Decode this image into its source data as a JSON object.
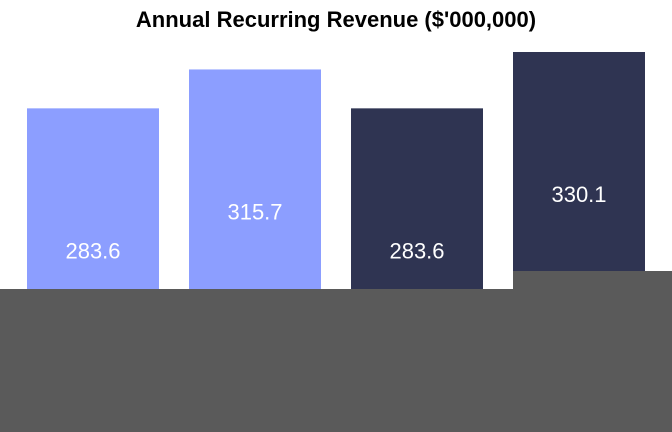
{
  "chart_data": {
    "type": "bar",
    "title": "Annual Recurring Revenue ($'000,000)",
    "categories": [
      "",
      "",
      "",
      ""
    ],
    "values": [
      283.6,
      315.7,
      283.6,
      330.1
    ],
    "data_labels": [
      "283.6",
      "315.7",
      "283.6",
      "330.1"
    ],
    "colors": [
      "#8c9eff",
      "#8c9eff",
      "#2f3452",
      "#2f3452"
    ],
    "label_color": "#ffffff",
    "xlabel": "",
    "ylabel": "",
    "grid": false,
    "legend": "none"
  },
  "colors": {
    "background": "#ffffff",
    "occluder": "#5a5a5a"
  }
}
